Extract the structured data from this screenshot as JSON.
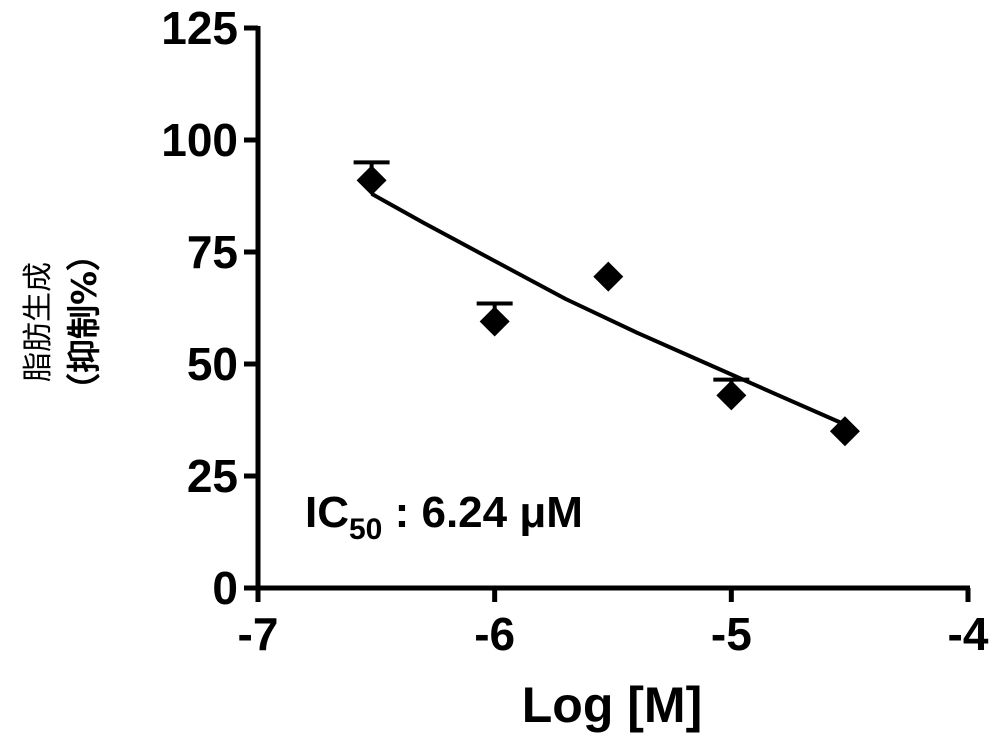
{
  "chart_data": {
    "type": "scatter",
    "xlabel": "Log [M]",
    "ylabel_line1": "脂肪生成",
    "ylabel_line2": "（抑制%）",
    "xlim": [
      -7,
      -4
    ],
    "ylim": [
      0,
      125
    ],
    "x_ticks": [
      "-7",
      "-6",
      "-5",
      "-4"
    ],
    "y_ticks": [
      "0",
      "25",
      "50",
      "75",
      "100",
      "125"
    ],
    "grid": false,
    "points": [
      {
        "x": -6.52,
        "y": 91,
        "err": 4
      },
      {
        "x": -6.0,
        "y": 59.5,
        "err": 4
      },
      {
        "x": -5.52,
        "y": 69.5,
        "err": 0
      },
      {
        "x": -5.0,
        "y": 43,
        "err": 3.5
      },
      {
        "x": -4.52,
        "y": 35,
        "err": 0
      }
    ],
    "fit_curve": {
      "x": [
        -6.52,
        -6.3,
        -6.0,
        -5.7,
        -5.4,
        -5.1,
        -4.8,
        -4.52
      ],
      "y": [
        88,
        81.5,
        73,
        64.5,
        57,
        50,
        43,
        36.5
      ]
    },
    "annotation": {
      "prefix": "IC",
      "subscript": "50",
      "suffix": " : 6.24 μM"
    }
  }
}
